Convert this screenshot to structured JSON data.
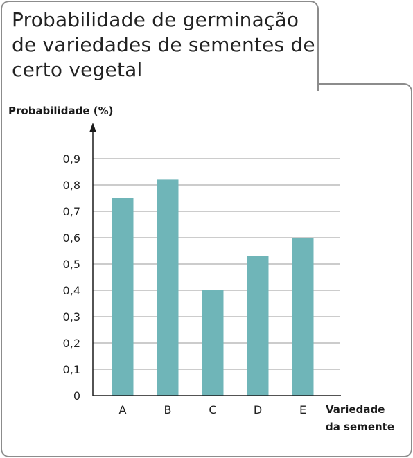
{
  "title": "Probabilidade de germinação de variedades de sementes de certo vegetal",
  "chart_data": {
    "type": "bar",
    "title": "Probabilidade de germinação de variedades de sementes de certo vegetal",
    "ylabel": "Probabilidade (%)",
    "xlabel_line1": "Variedade",
    "xlabel_line2": "da semente",
    "categories": [
      "A",
      "B",
      "C",
      "D",
      "E"
    ],
    "values": [
      0.75,
      0.82,
      0.4,
      0.53,
      0.6
    ],
    "ylim": [
      0,
      0.9
    ],
    "yticks": [
      0,
      0.1,
      0.2,
      0.3,
      0.4,
      0.5,
      0.6,
      0.7,
      0.8,
      0.9
    ],
    "ytick_labels": [
      "0",
      "0,1",
      "0,2",
      "0,3",
      "0,4",
      "0,5",
      "0,6",
      "0,7",
      "0,8",
      "0,9"
    ],
    "grid": true,
    "bar_color": "#6fb5b8",
    "grid_color": "#9a9a9a"
  }
}
